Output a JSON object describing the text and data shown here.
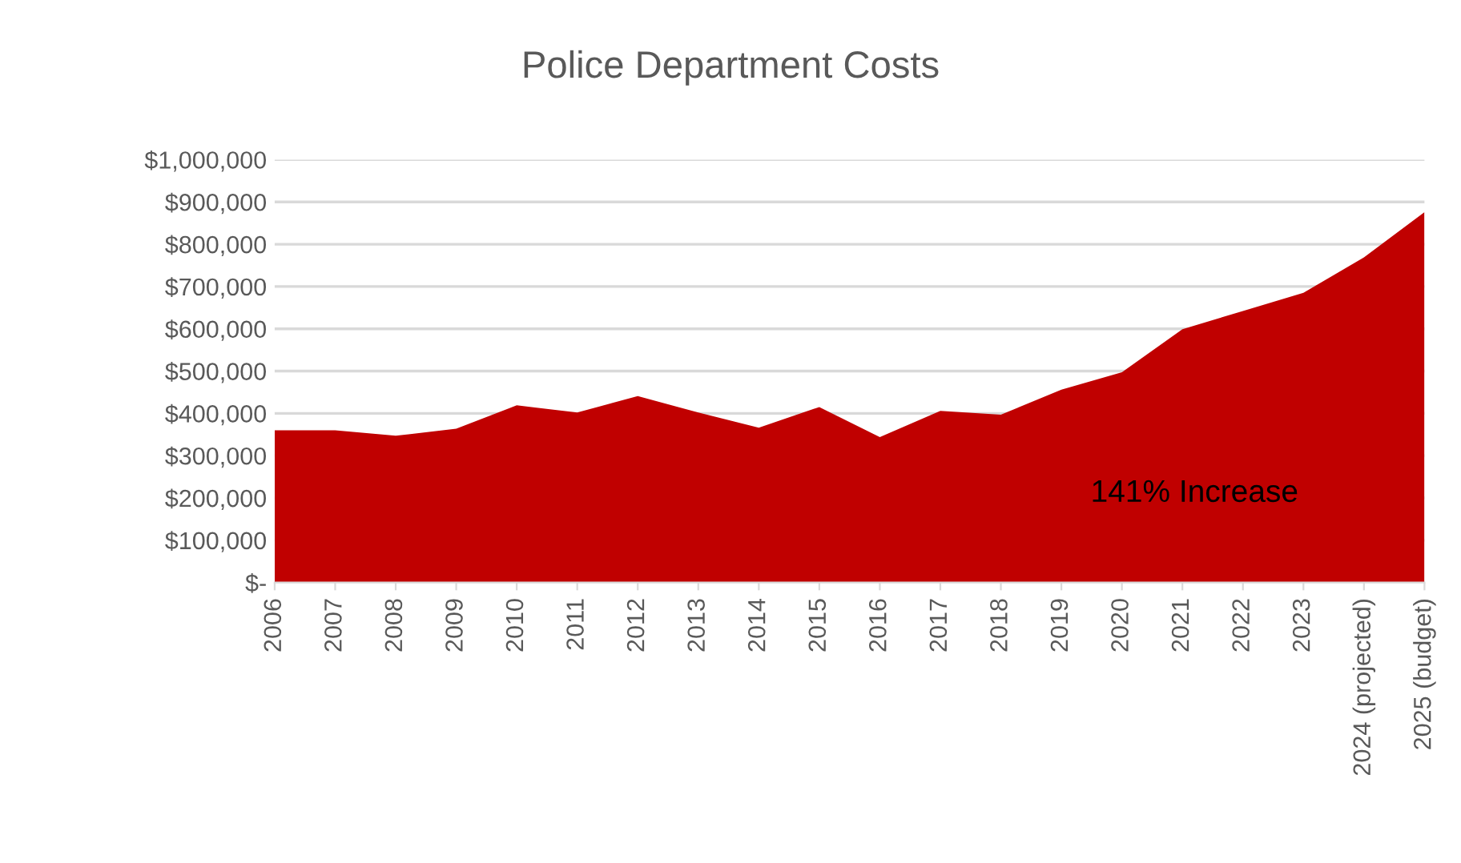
{
  "chart_data": {
    "type": "area",
    "title": "Police Department Costs",
    "categories": [
      "2006",
      "2007",
      "2008",
      "2009",
      "2010",
      "2011",
      "2012",
      "2013",
      "2014",
      "2015",
      "2016",
      "2017",
      "2018",
      "2019",
      "2020",
      "2021",
      "2022",
      "2023",
      "2024 (projected)",
      "2025 (budget)"
    ],
    "values": [
      360000,
      360000,
      347000,
      364000,
      419000,
      402000,
      441000,
      402000,
      366000,
      415000,
      344000,
      406000,
      397000,
      456000,
      497000,
      599000,
      642000,
      685000,
      769000,
      876000
    ],
    "color": "#c00000",
    "ylim": [
      0,
      1000000
    ],
    "yticks": [
      {
        "value": 0,
        "label": "$-"
      },
      {
        "value": 100000,
        "label": "$100,000"
      },
      {
        "value": 200000,
        "label": "$200,000"
      },
      {
        "value": 300000,
        "label": "$300,000"
      },
      {
        "value": 400000,
        "label": "$400,000"
      },
      {
        "value": 500000,
        "label": "$500,000"
      },
      {
        "value": 600000,
        "label": "$600,000"
      },
      {
        "value": 700000,
        "label": "$700,000"
      },
      {
        "value": 800000,
        "label": "$800,000"
      },
      {
        "value": 900000,
        "label": "$900,000"
      },
      {
        "value": 1000000,
        "label": "$1,000,000"
      }
    ],
    "grid": "y",
    "annotations": [
      "141% Increase"
    ]
  }
}
